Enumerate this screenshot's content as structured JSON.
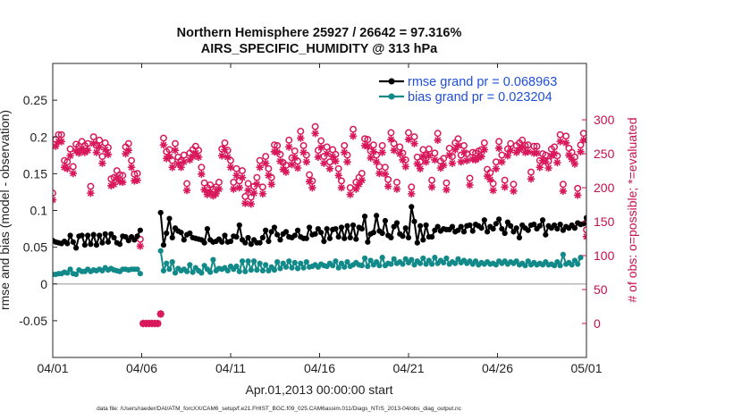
{
  "chart_data": {
    "type": "line",
    "title": "Northern Hemisphere 25927 / 26642 = 97.316%",
    "subtitle": "AIRS_SPECIFIC_HUMIDITY @ 313 hPa",
    "xlabel": "Apr.01,2013 00:00:00 start",
    "ylabel": "rmse and bias (model - observation)",
    "y2label": "# of obs: o=possible; *=evaluated",
    "footnote": "data file: /Users/raeder/DAI/ATM_forcXX/CAM6_setup/f.e21.FHIST_BGC.f09_025.CAM6assim.011/Diags_NTrS_2013-04/obs_diag_output.nc",
    "xlim": [
      0,
      30
    ],
    "ylim": [
      -0.1,
      0.3
    ],
    "y2lim": [
      -50,
      383
    ],
    "x_ticks": [
      {
        "value": 0,
        "label": "04/01"
      },
      {
        "value": 5,
        "label": "04/06"
      },
      {
        "value": 10,
        "label": "04/11"
      },
      {
        "value": 15,
        "label": "04/16"
      },
      {
        "value": 20,
        "label": "04/21"
      },
      {
        "value": 25,
        "label": "04/26"
      },
      {
        "value": 30,
        "label": "05/01"
      }
    ],
    "y_ticks": [
      {
        "value": -0.05,
        "label": "-0.05"
      },
      {
        "value": 0,
        "label": "0"
      },
      {
        "value": 0.05,
        "label": "0.05"
      },
      {
        "value": 0.1,
        "label": "0.1"
      },
      {
        "value": 0.15,
        "label": "0.15"
      },
      {
        "value": 0.2,
        "label": "0.2"
      },
      {
        "value": 0.25,
        "label": "0.25"
      }
    ],
    "y2_ticks": [
      {
        "value": 0,
        "label": "0"
      },
      {
        "value": 50,
        "label": "50"
      },
      {
        "value": 100,
        "label": "100"
      },
      {
        "value": 150,
        "label": "150"
      },
      {
        "value": 200,
        "label": "200"
      },
      {
        "value": 250,
        "label": "250"
      },
      {
        "value": 300,
        "label": "300"
      }
    ],
    "zero_line": 0,
    "legend_position": "top-right",
    "series": [
      {
        "name": "rmse grand pr = 0.068963",
        "color": "#000000",
        "marker": "filled-circle",
        "values": [
          0.059,
          0.057,
          0.056,
          0.055,
          0.058,
          0.055,
          0.066,
          0.057,
          0.049,
          0.065,
          0.066,
          0.053,
          0.066,
          0.054,
          0.067,
          0.053,
          0.066,
          0.056,
          0.068,
          0.057,
          0.068,
          0.063,
          0.056,
          0.054,
          0.065,
          0.064,
          0.059,
          0.064,
          0.06,
          0.065,
          0.073,
          null,
          null,
          null,
          null,
          null,
          null,
          0.097,
          0.053,
          0.069,
          0.089,
          0.063,
          0.076,
          0.072,
          0.07,
          0.06,
          0.067,
          0.069,
          0.063,
          0.062,
          0.061,
          0.06,
          0.056,
          0.075,
          0.06,
          0.057,
          0.058,
          0.061,
          0.057,
          0.066,
          0.057,
          0.058,
          0.065,
          0.064,
          0.08,
          0.06,
          0.056,
          0.063,
          0.054,
          0.06,
          0.056,
          0.056,
          0.063,
          0.073,
          0.058,
          0.071,
          0.077,
          0.067,
          0.06,
          0.068,
          0.071,
          0.064,
          0.063,
          0.066,
          0.073,
          0.064,
          0.062,
          0.062,
          0.077,
          0.067,
          0.068,
          0.075,
          0.07,
          0.058,
          0.075,
          0.062,
          0.074,
          0.075,
          0.064,
          0.077,
          0.062,
          0.079,
          0.063,
          0.08,
          0.061,
          0.077,
          0.075,
          0.092,
          0.057,
          0.068,
          0.07,
          0.093,
          0.072,
          0.069,
          0.086,
          0.066,
          0.063,
          0.078,
          0.083,
          0.068,
          0.065,
          0.076,
          0.063,
          0.105,
          0.085,
          0.056,
          0.079,
          0.06,
          0.08,
          0.064,
          0.064,
          0.073,
          0.078,
          0.072,
          0.075,
          0.074,
          0.074,
          0.078,
          0.071,
          0.073,
          0.078,
          0.071,
          0.079,
          0.08,
          0.072,
          0.081,
          0.079,
          0.076,
          0.087,
          0.071,
          0.078,
          0.075,
          0.082,
          0.088,
          0.075,
          0.069,
          0.084,
          0.079,
          0.071,
          0.076,
          0.063,
          0.08,
          0.076,
          0.073,
          0.08,
          0.081,
          0.075,
          0.079,
          0.087,
          0.067,
          0.079,
          0.076,
          0.08,
          0.075,
          0.081,
          0.073,
          0.078,
          0.076,
          0.08,
          0.076,
          0.083,
          0.081,
          0.082,
          0.09
        ]
      },
      {
        "name": "bias grand pr = 0.023204",
        "color": "#138a8a",
        "marker": "filled-circle",
        "values": [
          0.013,
          0.013,
          0.014,
          0.014,
          0.016,
          0.015,
          0.02,
          0.014,
          0.013,
          0.019,
          0.017,
          0.017,
          0.02,
          0.017,
          0.019,
          0.018,
          0.02,
          0.018,
          0.022,
          0.019,
          0.021,
          0.019,
          0.018,
          0.017,
          0.02,
          0.02,
          0.019,
          0.02,
          0.02,
          0.02,
          0.014,
          null,
          null,
          null,
          null,
          null,
          null,
          0.045,
          0.018,
          0.028,
          0.02,
          0.03,
          0.015,
          0.021,
          0.018,
          0.02,
          0.017,
          0.026,
          0.016,
          0.022,
          0.018,
          0.015,
          0.025,
          0.02,
          0.016,
          0.033,
          0.018,
          0.021,
          0.02,
          0.022,
          0.018,
          0.024,
          0.02,
          0.024,
          0.017,
          0.031,
          0.017,
          0.031,
          0.019,
          0.031,
          0.019,
          0.028,
          0.018,
          0.026,
          0.018,
          0.023,
          0.019,
          0.03,
          0.021,
          0.028,
          0.023,
          0.031,
          0.022,
          0.029,
          0.021,
          0.028,
          0.022,
          0.03,
          0.023,
          0.024,
          0.026,
          0.023,
          0.027,
          0.025,
          0.024,
          0.028,
          0.025,
          0.031,
          0.022,
          0.028,
          0.023,
          0.03,
          0.024,
          0.026,
          0.029,
          0.026,
          0.025,
          0.035,
          0.024,
          0.032,
          0.026,
          0.03,
          0.025,
          0.036,
          0.025,
          0.028,
          0.027,
          0.034,
          0.028,
          0.03,
          0.027,
          0.034,
          0.029,
          0.033,
          0.026,
          0.031,
          0.028,
          0.035,
          0.027,
          0.032,
          0.027,
          0.036,
          0.028,
          0.032,
          0.029,
          0.035,
          0.027,
          0.03,
          0.028,
          0.034,
          0.029,
          0.032,
          0.028,
          0.031,
          0.027,
          0.031,
          0.026,
          0.029,
          0.027,
          0.03,
          0.027,
          0.028,
          0.026,
          0.031,
          0.028,
          0.031,
          0.027,
          0.03,
          0.028,
          0.031,
          0.026,
          0.028,
          0.025,
          0.031,
          0.026,
          0.029,
          0.026,
          0.028,
          0.026,
          0.03,
          0.026,
          0.027,
          0.025,
          0.03,
          0.025,
          0.04,
          0.027,
          0.029,
          0.026,
          0.032,
          0.027,
          0.036
        ]
      },
      {
        "name": "# of obs possible",
        "color": "#d8185a",
        "marker": "open-circle",
        "axis": "right",
        "values": [
          192,
          271,
          278,
          278,
          240,
          238,
          257,
          231,
          264,
          261,
          268,
          262,
          265,
          202,
          275,
          262,
          270,
          246,
          266,
          259,
          213,
          215,
          225,
          219,
          218,
          260,
          265,
          240,
          220,
          221,
          124,
          0,
          0,
          0,
          0,
          0,
          0,
          14,
          273,
          253,
          256,
          240,
          265,
          245,
          240,
          248,
          206,
          251,
          256,
          261,
          255,
          230,
          207,
          200,
          204,
          198,
          201,
          208,
          257,
          266,
          255,
          240,
          208,
          228,
          210,
          225,
          187,
          206,
          186,
          202,
          215,
          240,
          201,
          246,
          228,
          215,
          263,
          262,
          249,
          237,
          233,
          270,
          244,
          254,
          239,
          283,
          262,
          248,
          219,
          210,
          290,
          255,
          269,
          246,
          260,
          238,
          256,
          249,
          228,
          210,
          262,
          248,
          200,
          286,
          208,
          215,
          221,
          272,
          271,
          254,
          263,
          248,
          231,
          262,
          230,
          212,
          281,
          265,
          208,
          260,
          251,
          241,
          281,
          201,
          275,
          245,
          238,
          256,
          248,
          257,
          211,
          251,
          280,
          239,
          243,
          207,
          258,
          246,
          266,
          272,
          248,
          262,
          250,
          214,
          252,
          251,
          254,
          256,
          266,
          227,
          222,
          206,
          238,
          268,
          248,
          211,
          257,
          265,
          205,
          262,
          266,
          270,
          262,
          263,
          223,
          261,
          261,
          240,
          250,
          248,
          239,
          257,
          260,
          247,
          278,
          205,
          276,
          258,
          252,
          245,
          199,
          263,
          280,
          138
        ]
      },
      {
        "name": "# of obs evaluated",
        "color": "#d8185a",
        "marker": "asterisk",
        "axis": "right",
        "values": [
          182,
          261,
          268,
          268,
          230,
          228,
          247,
          221,
          254,
          251,
          258,
          252,
          255,
          192,
          265,
          252,
          260,
          236,
          256,
          249,
          203,
          205,
          215,
          209,
          208,
          250,
          255,
          230,
          210,
          211,
          114,
          0,
          0,
          0,
          0,
          0,
          0,
          14,
          263,
          243,
          246,
          230,
          255,
          235,
          230,
          238,
          196,
          241,
          246,
          251,
          245,
          220,
          197,
          190,
          194,
          188,
          191,
          198,
          247,
          256,
          245,
          230,
          198,
          218,
          200,
          215,
          177,
          196,
          176,
          192,
          205,
          230,
          191,
          236,
          218,
          205,
          253,
          252,
          239,
          227,
          223,
          260,
          234,
          244,
          229,
          273,
          252,
          238,
          209,
          200,
          280,
          245,
          259,
          236,
          250,
          228,
          246,
          239,
          218,
          200,
          252,
          238,
          190,
          276,
          198,
          205,
          211,
          262,
          261,
          244,
          253,
          238,
          221,
          252,
          220,
          202,
          271,
          255,
          198,
          250,
          241,
          231,
          271,
          191,
          265,
          235,
          228,
          246,
          238,
          247,
          201,
          241,
          270,
          229,
          233,
          197,
          248,
          236,
          256,
          262,
          238,
          252,
          240,
          204,
          242,
          241,
          244,
          246,
          256,
          217,
          212,
          196,
          228,
          258,
          238,
          201,
          247,
          255,
          195,
          252,
          256,
          260,
          252,
          253,
          213,
          251,
          251,
          230,
          240,
          238,
          229,
          247,
          250,
          237,
          268,
          195,
          266,
          248,
          242,
          235,
          189,
          253,
          270,
          128
        ]
      }
    ]
  }
}
